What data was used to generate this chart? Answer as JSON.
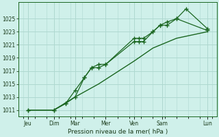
{
  "background_color": "#cff0ea",
  "grid_color": "#aed8d0",
  "line_color": "#1a6620",
  "xlabel": "Pression niveau de la mer( hPa )",
  "ylim": [
    1010.0,
    1027.5
  ],
  "yticks": [
    1011,
    1013,
    1015,
    1017,
    1019,
    1021,
    1023,
    1025
  ],
  "xlim": [
    -0.2,
    8.2
  ],
  "day_labels": [
    "Jeu",
    "Dim",
    "Mar",
    "Mer",
    "Ven",
    "Sam",
    "Lun"
  ],
  "day_positions": [
    0.2,
    1.3,
    2.2,
    3.5,
    4.7,
    5.9,
    7.8
  ],
  "series1_x": [
    0.2,
    1.3,
    1.8,
    2.2,
    2.6,
    2.9,
    3.2,
    3.5,
    4.7,
    4.9,
    5.1,
    5.5,
    5.8,
    6.1,
    6.5,
    7.8
  ],
  "series1_y": [
    1011,
    1011,
    1012,
    1014,
    1016,
    1017.5,
    1018,
    1018,
    1021.5,
    1021.5,
    1021.5,
    1023,
    1024,
    1024.5,
    1025,
    1023.2
  ],
  "series2_x": [
    0.2,
    1.3,
    1.8,
    2.2,
    2.6,
    2.9,
    3.2,
    3.5,
    4.7,
    4.9,
    5.1,
    5.5,
    5.8,
    6.1,
    6.5,
    6.9,
    7.8
  ],
  "series2_y": [
    1011,
    1011,
    1012,
    1013,
    1016,
    1017.5,
    1017.5,
    1018,
    1022,
    1022,
    1022,
    1023,
    1024,
    1024,
    1025,
    1026.5,
    1023.5
  ],
  "series3_x": [
    0.2,
    1.3,
    2.2,
    3.2,
    4.7,
    5.5,
    6.5,
    7.8
  ],
  "series3_y": [
    1011,
    1011,
    1013,
    1015,
    1018.5,
    1020.5,
    1022,
    1023
  ]
}
